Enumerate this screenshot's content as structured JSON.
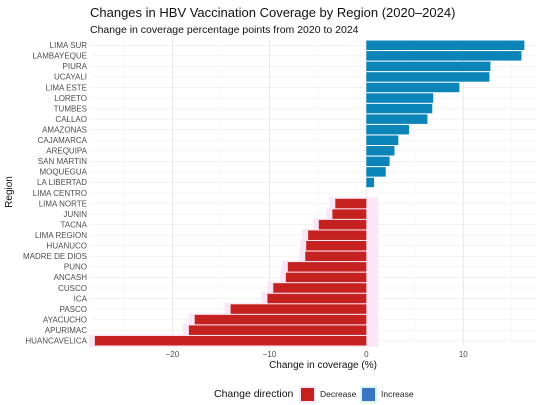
{
  "chart_data": {
    "type": "bar",
    "orientation": "horizontal",
    "title": "Changes in HBV Vaccination Coverage by Region (2020–2024)",
    "subtitle": "Change in coverage percentage points from 2020 to 2024",
    "xlabel": "Change in coverage (%)",
    "ylabel": "Region",
    "xlim": [
      -28.5,
      17.5
    ],
    "xticks": [
      -20,
      -10,
      0,
      10
    ],
    "tick_labels": [
      "−20",
      "−10",
      "0",
      "10"
    ],
    "grid": true,
    "legend_position": "bottom",
    "legend": {
      "title": "Change direction",
      "entries": [
        {
          "label": "Decrease",
          "color": "#c4211f"
        },
        {
          "label": "Increase",
          "color": "#3a75c4"
        }
      ]
    },
    "colors": {
      "increase": "#0b84b8",
      "decrease": "#c4211f",
      "halo": "#fbe6f8"
    },
    "categories": [
      "LIMA SUR",
      "LAMBAYEQUE",
      "PIURA",
      "UCAYALI",
      "LIMA ESTE",
      "LORETO",
      "TUMBES",
      "CALLAO",
      "AMAZONAS",
      "CAJAMARCA",
      "AREQUIPA",
      "SAN MARTIN",
      "MOQUEGUA",
      "LA LIBERTAD",
      "LIMA CENTRO",
      "LIMA NORTE",
      "JUNIN",
      "TACNA",
      "LIMA REGION",
      "HUANUCO",
      "MADRE DE DIOS",
      "PUNO",
      "ANCASH",
      "CUSCO",
      "ICA",
      "PASCO",
      "AYACUCHO",
      "APURIMAC",
      "HUANCAVELICA"
    ],
    "values": [
      16.3,
      16.0,
      12.8,
      12.7,
      9.6,
      6.9,
      6.8,
      6.3,
      4.4,
      3.3,
      2.9,
      2.4,
      2.0,
      0.8,
      0.0,
      -3.2,
      -3.5,
      -4.9,
      -6.0,
      -6.2,
      -6.3,
      -8.1,
      -8.3,
      -9.6,
      -10.2,
      -14.0,
      -17.7,
      -18.3,
      -28.0
    ]
  }
}
